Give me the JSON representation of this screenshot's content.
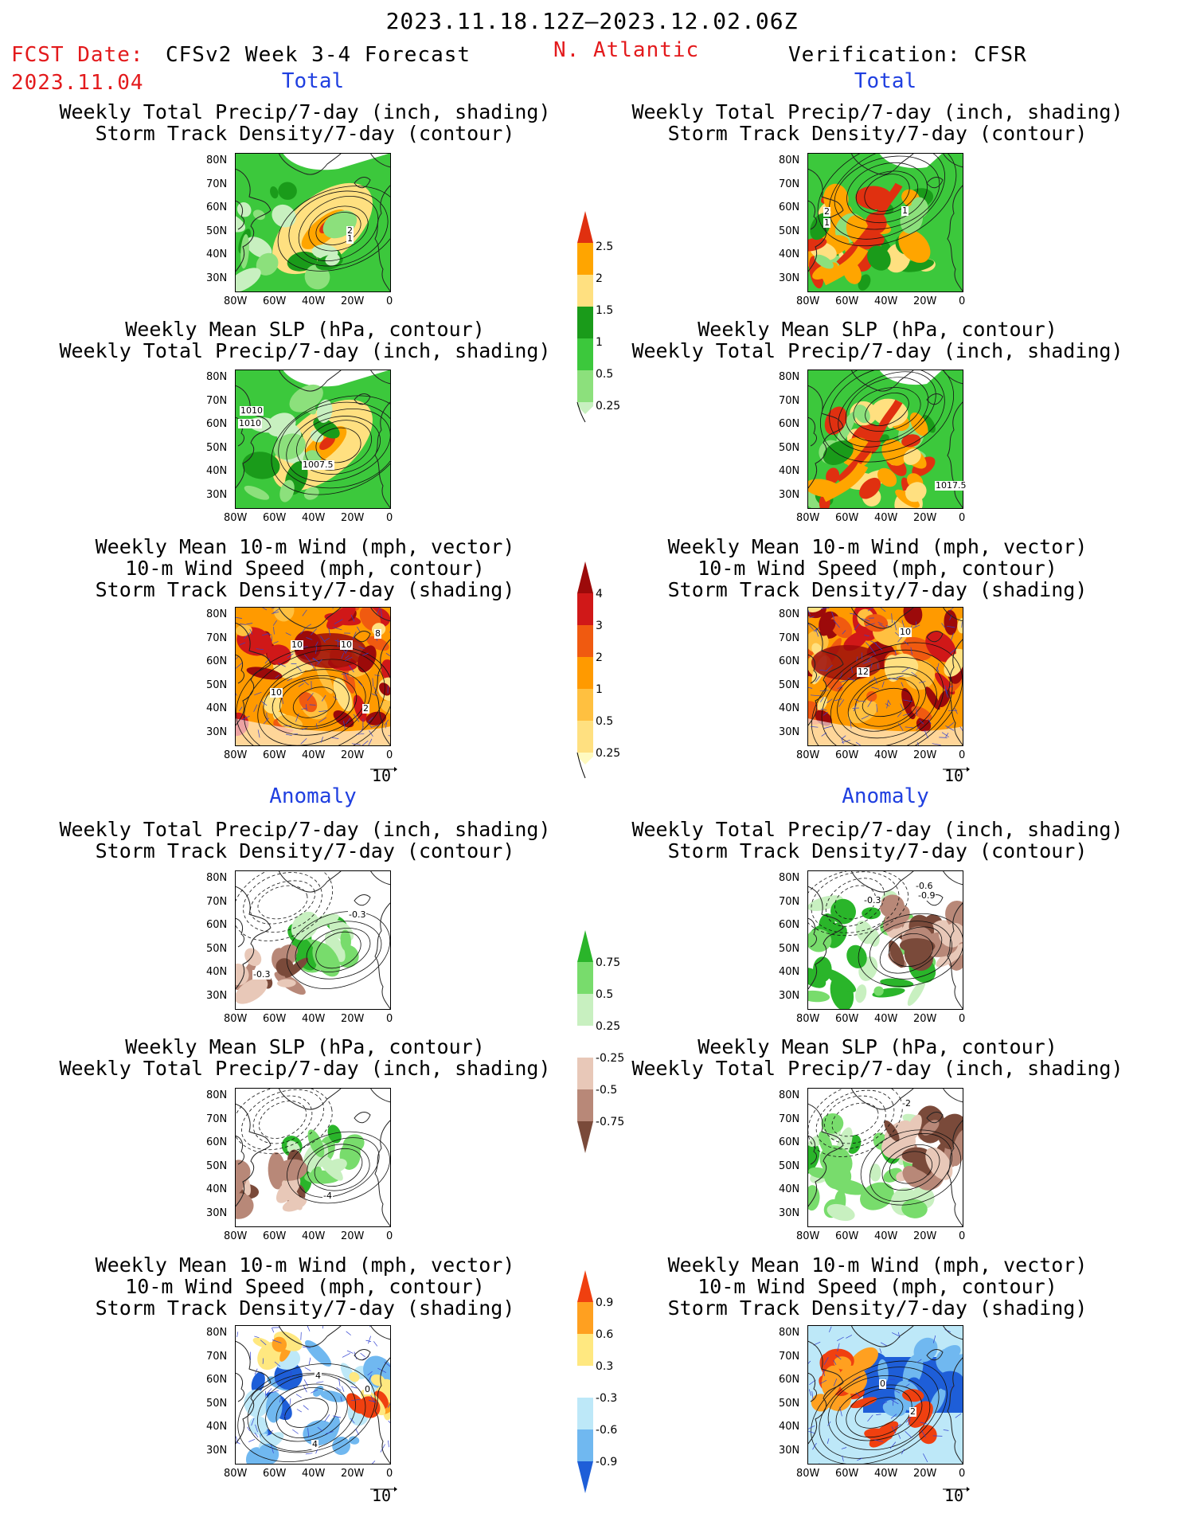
{
  "header": {
    "period": "2023.11.18.12Z–2023.12.02.06Z",
    "fcst_label": "FCST Date:",
    "fcst_date": "2023.11.04",
    "product": "CFSv2 Week 3-4 Forecast",
    "region": "N. Atlantic",
    "verification": "Verification: CFSR"
  },
  "sections": {
    "total": "Total",
    "anomaly": "Anomaly"
  },
  "titles": {
    "precip_storm": "Weekly Total Precip/7-day (inch, shading)\nStorm Track Density/7-day (contour)",
    "slp_precip": "Weekly Mean SLP (hPa, contour)\nWeekly Total Precip/7-day (inch, shading)",
    "wind_storm": "Weekly Mean 10-m Wind (mph, vector)\n10-m Wind Speed (mph, contour)\nStorm Track Density/7-day (shading)"
  },
  "axes": {
    "lat_ticks": [
      "80N",
      "70N",
      "60N",
      "50N",
      "40N",
      "30N"
    ],
    "lon_ticks": [
      "80W",
      "60W",
      "40W",
      "20W",
      "0"
    ]
  },
  "vector_ref": "10",
  "colorbars": {
    "precip_total": [
      "2.5",
      "2",
      "1.5",
      "1",
      "0.5",
      "0.25"
    ],
    "storm_total": [
      "4",
      "3",
      "2",
      "1",
      "0.5",
      "0.25"
    ],
    "precip_anom": [
      "0.75",
      "0.5",
      "0.25",
      "-0.25",
      "-0.5",
      "-0.75"
    ],
    "storm_anom": [
      "0.9",
      "0.6",
      "0.3",
      "-0.3",
      "-0.6",
      "-0.9"
    ]
  },
  "contour_labels": {
    "l1": "2",
    "l1b": "1",
    "r1a": "2",
    "r1b": "1",
    "r1c": "1",
    "l2a": "1010",
    "l2b": "1010",
    "l2c": "1007.5",
    "r2a": "1017.5",
    "l3a": "10",
    "l3b": "10",
    "l3c": "10",
    "l3d": "8",
    "l3e": "2",
    "r3a": "10",
    "r3b": "12",
    "l4a": "-0.3",
    "l4b": "-0.3",
    "r4a": "-0.3",
    "r4b": "-0.6",
    "r4c": "-0.9",
    "l5a": "-4",
    "r5a": "-2",
    "l6a": "4",
    "l6b": "4",
    "l6c": "0",
    "r6a": "0",
    "r6b": "2"
  },
  "colors": {
    "precip": [
      "#c8f0c0",
      "#8ce07c",
      "#3cc83c",
      "#1a9b1a",
      "#ffe080",
      "#ffa500",
      "#e03010"
    ],
    "storm": [
      "#fffac0",
      "#ffe080",
      "#ffc040",
      "#ff9a00",
      "#f05a10",
      "#d01818",
      "#9c0a0a"
    ],
    "precip_anom_pos": [
      "#c8f0c0",
      "#78dc6c",
      "#2ab52a"
    ],
    "precip_anom_neg": [
      "#e8c8b8",
      "#b88878",
      "#7a4a3a"
    ],
    "storm_anom_pos": [
      "#ffe880",
      "#ffa020",
      "#f04010"
    ],
    "storm_anom_neg": [
      "#bde8f8",
      "#70b8f0",
      "#1e5ed8"
    ]
  }
}
